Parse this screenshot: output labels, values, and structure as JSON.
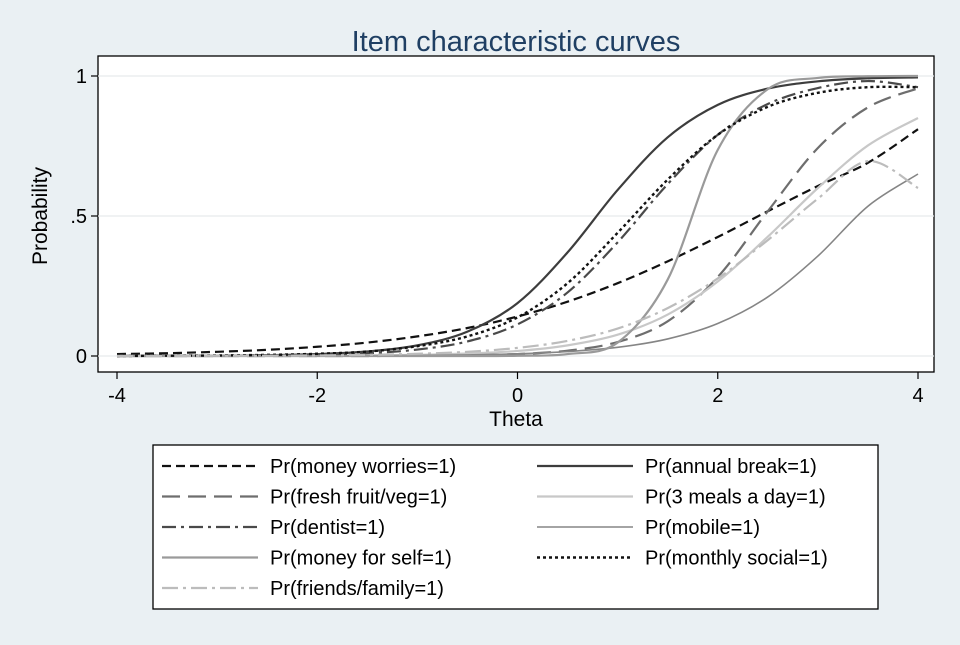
{
  "chart_data": {
    "type": "line",
    "title": "Item characteristic curves",
    "xlabel": "Theta",
    "ylabel": "Probability",
    "xlim": [
      -4,
      4
    ],
    "ylim": [
      0,
      1
    ],
    "x_ticks": [
      -4,
      -2,
      0,
      2,
      4
    ],
    "x_tick_labels": [
      "-4",
      "-2",
      "0",
      "2",
      "4"
    ],
    "y_ticks": [
      0,
      0.5,
      1
    ],
    "y_tick_labels": [
      "0",
      ".5",
      "1"
    ],
    "grid": true,
    "legend_position": "bottom",
    "legend_columns": 2,
    "x": [
      -4,
      -3.5,
      -3,
      -2.5,
      -2,
      -1.5,
      -1,
      -0.5,
      0,
      0.5,
      1,
      1.5,
      2,
      2.5,
      3,
      3.5,
      4
    ],
    "series": [
      {
        "name": "Pr(money worries=1)",
        "color": "#111111",
        "dash": "9,5",
        "width": 2.2,
        "values": [
          0.007,
          0.01,
          0.015,
          0.022,
          0.033,
          0.048,
          0.07,
          0.1,
          0.141,
          0.194,
          0.26,
          0.338,
          0.425,
          0.517,
          0.607,
          0.69,
          0.81
        ]
      },
      {
        "name": "Pr(annual break=1)",
        "color": "#3d3d3d",
        "dash": "",
        "width": 2.2,
        "values": [
          0.0,
          0.001,
          0.001,
          0.003,
          0.007,
          0.016,
          0.038,
          0.087,
          0.189,
          0.37,
          0.593,
          0.781,
          0.897,
          0.955,
          0.981,
          0.992,
          0.995
        ]
      },
      {
        "name": "Pr(fresh fruit/veg=1)",
        "color": "#6e6e6e",
        "dash": "18,8",
        "width": 2.2,
        "values": [
          0.0,
          0.0,
          0.0,
          0.0,
          0.0,
          0.0,
          0.001,
          0.003,
          0.007,
          0.019,
          0.05,
          0.124,
          0.282,
          0.517,
          0.743,
          0.888,
          0.956
        ]
      },
      {
        "name": "Pr(3 meals a day=1)",
        "color": "#c8c8c8",
        "dash": "",
        "width": 2.2,
        "values": [
          0.0,
          0.0,
          0.0,
          0.001,
          0.001,
          0.002,
          0.004,
          0.009,
          0.018,
          0.038,
          0.076,
          0.148,
          0.266,
          0.426,
          0.6,
          0.752,
          0.85
        ]
      },
      {
        "name": "Pr(dentist=1)",
        "color": "#4a4a4a",
        "dash": "14,5,3,5",
        "width": 2.2,
        "values": [
          0.0,
          0.001,
          0.001,
          0.002,
          0.004,
          0.01,
          0.023,
          0.052,
          0.113,
          0.227,
          0.406,
          0.614,
          0.79,
          0.9,
          0.957,
          0.982,
          0.96
        ]
      },
      {
        "name": "Pr(mobile=1)",
        "color": "#858585",
        "dash": "",
        "width": 1.6,
        "values": [
          0.0,
          0.0,
          0.0,
          0.0,
          0.0,
          0.001,
          0.002,
          0.004,
          0.008,
          0.016,
          0.031,
          0.061,
          0.116,
          0.211,
          0.357,
          0.535,
          0.65
        ]
      },
      {
        "name": "Pr(money for self=1)",
        "color": "#9a9a9a",
        "dash": "",
        "width": 2.2,
        "values": [
          0.0,
          0.0,
          0.0,
          0.0,
          0.0,
          0.0,
          0.0,
          0.0,
          0.001,
          0.007,
          0.048,
          0.273,
          0.736,
          0.953,
          0.993,
          0.999,
          1.0
        ]
      },
      {
        "name": "Pr(monthly social=1)",
        "color": "#111111",
        "dash": "3,3",
        "width": 2.4,
        "values": [
          0.0,
          0.001,
          0.002,
          0.004,
          0.008,
          0.016,
          0.035,
          0.07,
          0.138,
          0.26,
          0.44,
          0.63,
          0.79,
          0.89,
          0.94,
          0.96,
          0.96
        ]
      },
      {
        "name": "Pr(friends/family=1)",
        "color": "#bcbcbc",
        "dash": "16,5,3,5",
        "width": 2.2,
        "values": [
          0.0,
          0.0,
          0.001,
          0.001,
          0.002,
          0.004,
          0.008,
          0.015,
          0.029,
          0.054,
          0.098,
          0.171,
          0.277,
          0.414,
          0.562,
          0.696,
          0.6
        ]
      }
    ],
    "legend_order": [
      "Pr(money worries=1)",
      "Pr(annual break=1)",
      "Pr(fresh fruit/veg=1)",
      "Pr(3 meals a day=1)",
      "Pr(dentist=1)",
      "Pr(mobile=1)",
      "Pr(money for self=1)",
      "Pr(monthly social=1)",
      "Pr(friends/family=1)"
    ]
  }
}
